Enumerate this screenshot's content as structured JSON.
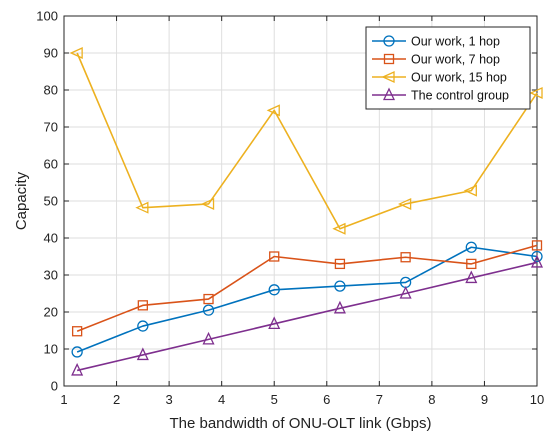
{
  "chart_data": {
    "type": "line",
    "title": "",
    "xlabel": "The bandwidth of ONU-OLT link (Gbps)",
    "ylabel": "Capacity",
    "xlim": [
      1,
      10
    ],
    "ylim": [
      0,
      100
    ],
    "xticks": [
      1,
      2,
      3,
      4,
      5,
      6,
      7,
      8,
      9,
      10
    ],
    "yticks": [
      0,
      10,
      20,
      30,
      40,
      50,
      60,
      70,
      80,
      90,
      100
    ],
    "grid": true,
    "legend_position": "top-right",
    "x": [
      1.25,
      2.5,
      3.75,
      5.0,
      6.25,
      7.5,
      8.75,
      10.0
    ],
    "series": [
      {
        "name": "Our work, 1 hop",
        "color": "#0072BD",
        "marker": "circle",
        "values": [
          9.2,
          16.2,
          20.5,
          26.0,
          27.0,
          28.0,
          37.5,
          35.0
        ]
      },
      {
        "name": "Our work, 7 hop",
        "color": "#D95319",
        "marker": "square",
        "values": [
          14.8,
          21.8,
          23.5,
          35.0,
          33.0,
          34.8,
          33.0,
          38.0
        ]
      },
      {
        "name": "Our work, 15 hop",
        "color": "#EDB120",
        "marker": "triangle-left",
        "values": [
          90.0,
          48.2,
          49.2,
          74.5,
          42.5,
          49.2,
          52.8,
          79.2
        ]
      },
      {
        "name": "The control group",
        "color": "#7E2F8E",
        "marker": "triangle-up",
        "values": [
          4.2,
          8.4,
          12.6,
          16.8,
          21.0,
          25.0,
          29.2,
          33.4
        ]
      }
    ]
  }
}
